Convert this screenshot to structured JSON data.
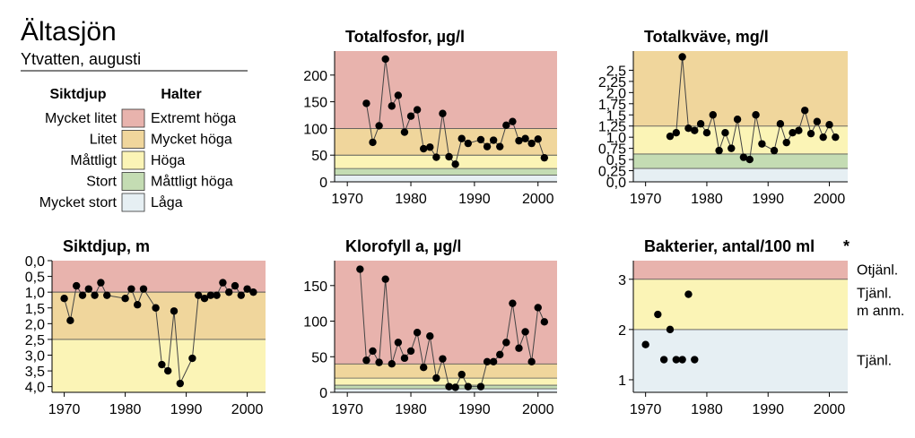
{
  "header": {
    "title": "Ältasjön",
    "subtitle": "Ytvatten, augusti"
  },
  "legend": {
    "col1_header": "Siktdjup",
    "col2_header": "Halter",
    "rows": [
      {
        "depth": "Mycket litet",
        "level": "Extremt höga",
        "color": "#e8b3ad"
      },
      {
        "depth": "Litet",
        "level": "Mycket höga",
        "color": "#f0d69c"
      },
      {
        "depth": "Måttligt",
        "level": "Höga",
        "color": "#fbf4b6"
      },
      {
        "depth": "Stort",
        "level": "Måttligt höga",
        "color": "#c4dcb3"
      },
      {
        "depth": "Mycket stort",
        "level": "Låga",
        "color": "#e6eff3"
      }
    ]
  },
  "colors": {
    "extreme": "#e8b3ad",
    "very_high": "#f0d69c",
    "high": "#fbf4b6",
    "moderate": "#c4dcb3",
    "low": "#e6eff3",
    "line": "#444444",
    "marker": "#000000"
  },
  "chart_data": [
    {
      "id": "fosfor",
      "type": "line",
      "title": "Totalfosfor, µg/l",
      "xlim": [
        1968,
        2003
      ],
      "ylim": [
        0,
        245
      ],
      "xticks": [
        1970,
        1980,
        1990,
        2000
      ],
      "yticks": [
        0,
        50,
        100,
        150,
        200
      ],
      "ytick_labels": [
        "0",
        "50",
        "100",
        "150",
        "200"
      ],
      "bands": [
        {
          "from": 0,
          "to": 12.5,
          "class": "low"
        },
        {
          "from": 12.5,
          "to": 25,
          "class": "moderate"
        },
        {
          "from": 25,
          "to": 50,
          "class": "high"
        },
        {
          "from": 50,
          "to": 100,
          "class": "very_high"
        },
        {
          "from": 100,
          "to": 245,
          "class": "extreme"
        }
      ],
      "x": [
        1973,
        1974,
        1975,
        1976,
        1977,
        1978,
        1979,
        1980,
        1981,
        1982,
        1983,
        1984,
        1985,
        1986,
        1987,
        1988,
        1989,
        1991,
        1992,
        1993,
        1994,
        1995,
        1996,
        1997,
        1998,
        1999,
        2000,
        2001
      ],
      "y": [
        147,
        74,
        105,
        230,
        142,
        162,
        93,
        123,
        135,
        62,
        65,
        46,
        128,
        47,
        33,
        81,
        72,
        79,
        66,
        78,
        66,
        106,
        113,
        77,
        81,
        72,
        80,
        45
      ]
    },
    {
      "id": "kvave",
      "type": "line",
      "title": "Totalkväve, mg/l",
      "xlim": [
        1968,
        2003
      ],
      "ylim": [
        0,
        2.93
      ],
      "xticks": [
        1970,
        1980,
        1990,
        2000
      ],
      "yticks": [
        0,
        0.25,
        0.5,
        0.75,
        1.0,
        1.25,
        1.5,
        1.75,
        2.0,
        2.25,
        2.5
      ],
      "ytick_labels": [
        "0,0",
        "0,25",
        "0,5",
        "0,75",
        "1,0",
        "1,25",
        "1,5",
        "1,75",
        "2,0",
        "2,25",
        "2,5"
      ],
      "bands": [
        {
          "from": 0,
          "to": 0.3,
          "class": "low"
        },
        {
          "from": 0.3,
          "to": 0.625,
          "class": "moderate"
        },
        {
          "from": 0.625,
          "to": 1.25,
          "class": "high"
        },
        {
          "from": 1.25,
          "to": 5,
          "class": "very_high"
        }
      ],
      "x": [
        1974,
        1975,
        1976,
        1977,
        1978,
        1979,
        1980,
        1981,
        1982,
        1983,
        1984,
        1985,
        1986,
        1987,
        1988,
        1989,
        1991,
        1992,
        1993,
        1994,
        1995,
        1996,
        1997,
        1998,
        1999,
        2000,
        2001
      ],
      "y": [
        1.02,
        1.1,
        2.8,
        1.2,
        1.15,
        1.3,
        1.1,
        1.5,
        0.7,
        1.1,
        0.75,
        1.4,
        0.55,
        0.5,
        1.5,
        0.85,
        0.7,
        1.3,
        0.88,
        1.1,
        1.15,
        1.6,
        1.08,
        1.35,
        1.0,
        1.28,
        1.0
      ]
    },
    {
      "id": "siktdjup",
      "type": "line",
      "title": "Siktdjup, m",
      "xlim": [
        1968,
        2003
      ],
      "ylim": [
        4.18,
        0
      ],
      "xticks": [
        1970,
        1980,
        1990,
        2000
      ],
      "yticks": [
        0,
        0.5,
        1.0,
        1.5,
        2.0,
        2.5,
        3.0,
        3.5,
        4.0
      ],
      "ytick_labels": [
        "0,0",
        "0,5",
        "1,0",
        "1,5",
        "2,0",
        "2,5",
        "3,0",
        "3,5",
        "4,0"
      ],
      "bands": [
        {
          "from": 0,
          "to": 1.0,
          "class": "extreme"
        },
        {
          "from": 1.0,
          "to": 2.5,
          "class": "very_high"
        },
        {
          "from": 2.5,
          "to": 5,
          "class": "high"
        }
      ],
      "x": [
        1970,
        1971,
        1972,
        1973,
        1974,
        1975,
        1976,
        1977,
        1980,
        1981,
        1982,
        1983,
        1985,
        1986,
        1987,
        1988,
        1989,
        1991,
        1992,
        1993,
        1994,
        1995,
        1996,
        1997,
        1998,
        1999,
        2000,
        2001
      ],
      "y": [
        1.2,
        1.9,
        0.8,
        1.1,
        0.9,
        1.1,
        0.7,
        1.1,
        1.2,
        0.9,
        1.4,
        0.9,
        1.5,
        3.3,
        3.5,
        1.6,
        3.9,
        3.1,
        1.1,
        1.2,
        1.1,
        1.1,
        0.7,
        1.0,
        0.8,
        1.1,
        0.9,
        1.0
      ]
    },
    {
      "id": "klorofyll",
      "type": "line",
      "title": "Klorofyll a, µg/l",
      "xlim": [
        1968,
        2003
      ],
      "ylim": [
        0,
        185
      ],
      "xticks": [
        1970,
        1980,
        1990,
        2000
      ],
      "yticks": [
        0,
        50,
        100,
        150
      ],
      "ytick_labels": [
        "0",
        "50",
        "100",
        "150"
      ],
      "bands": [
        {
          "from": 0,
          "to": 5,
          "class": "low"
        },
        {
          "from": 5,
          "to": 10,
          "class": "moderate"
        },
        {
          "from": 10,
          "to": 20,
          "class": "high"
        },
        {
          "from": 20,
          "to": 40,
          "class": "very_high"
        },
        {
          "from": 40,
          "to": 185,
          "class": "extreme"
        }
      ],
      "x": [
        1972,
        1973,
        1974,
        1975,
        1976,
        1977,
        1978,
        1979,
        1980,
        1981,
        1982,
        1983,
        1984,
        1985,
        1986,
        1987,
        1988,
        1989,
        1991,
        1992,
        1993,
        1994,
        1995,
        1996,
        1997,
        1998,
        1999,
        2000,
        2001
      ],
      "y": [
        173,
        45,
        58,
        42,
        159,
        40,
        70,
        48,
        58,
        84,
        35,
        79,
        20,
        47,
        8,
        7,
        25,
        8,
        8,
        43,
        43,
        53,
        70,
        125,
        62,
        85,
        43,
        119,
        99
      ]
    },
    {
      "id": "bakterier",
      "type": "scatter",
      "title": "Bakterier, antal/100 ml",
      "title_mark": "*",
      "xlim": [
        1968,
        2003
      ],
      "ylim": [
        0.75,
        3.37
      ],
      "xticks": [
        1970,
        1980,
        1990,
        2000
      ],
      "yticks": [
        1,
        2,
        3
      ],
      "ytick_labels": [
        "1",
        "2",
        "3"
      ],
      "bands": [
        {
          "from": 0,
          "to": 2,
          "class": "low"
        },
        {
          "from": 2,
          "to": 3,
          "class": "high"
        },
        {
          "from": 3,
          "to": 4,
          "class": "extreme"
        }
      ],
      "band_labels": [
        "Otjänl.",
        "Tjänl.",
        "m anm.",
        "Tjänl."
      ],
      "x": [
        1970,
        1972,
        1973,
        1974,
        1975,
        1976,
        1977,
        1978
      ],
      "y": [
        1.7,
        2.3,
        1.4,
        2.0,
        1.4,
        1.4,
        2.7,
        1.4
      ]
    }
  ]
}
